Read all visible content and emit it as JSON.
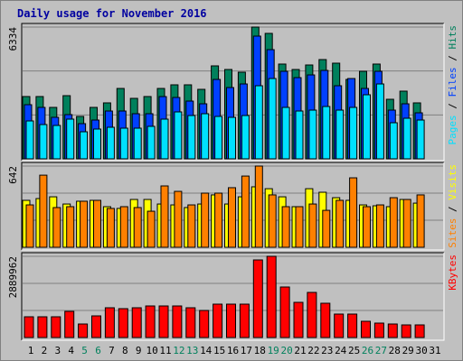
{
  "title": "Daily usage for November 2016",
  "separator": "/",
  "chart_data": [
    {
      "type": "bar",
      "ylim": [
        0,
        6334
      ],
      "yticks": [
        6334
      ],
      "series": [
        {
          "name": "Hits",
          "color": "#00805c",
          "values": [
            2995,
            2995,
            2473,
            3037,
            2039,
            2473,
            2690,
            3384,
            2907,
            2995,
            3384,
            3558,
            3558,
            3341,
            4469,
            4295,
            4165,
            6334,
            6031,
            4556,
            4295,
            4512,
            4772,
            4599,
            3818,
            4208,
            4556,
            2863,
            3254,
            2690,
            null
          ]
        },
        {
          "name": "Files",
          "color": "#0040ff",
          "values": [
            2603,
            2473,
            1996,
            2126,
            1692,
            1865,
            2299,
            2299,
            2169,
            2169,
            2993,
            2950,
            2776,
            2646,
            3817,
            3427,
            3600,
            5900,
            5249,
            4208,
            3904,
            4034,
            4251,
            3514,
            3861,
            3384,
            4208,
            2342,
            2646,
            2212,
            null
          ]
        },
        {
          "name": "Pages",
          "color": "#00e0ff",
          "values": [
            1822,
            1648,
            1605,
            1909,
            1301,
            1432,
            1518,
            1475,
            1475,
            1562,
            1909,
            2256,
            2082,
            2169,
            2039,
            1995,
            2082,
            3514,
            3861,
            2473,
            2299,
            2342,
            2516,
            2342,
            2473,
            3080,
            3600,
            1735,
            1952,
            1865,
            null
          ]
        }
      ]
    },
    {
      "type": "bar",
      "ylim": [
        0,
        642
      ],
      "yticks": [
        642
      ],
      "series": [
        {
          "name": "Visits",
          "color": "#ffff00",
          "values": [
            371,
            385,
            399,
            342,
            364,
            371,
            321,
            307,
            378,
            378,
            342,
            335,
            314,
            342,
            414,
            342,
            399,
            478,
            463,
            399,
            321,
            463,
            435,
            392,
            371,
            335,
            328,
            321,
            378,
            349,
            null
          ]
        },
        {
          "name": "Sites",
          "color": "#ff8000",
          "values": [
            335,
            570,
            314,
            321,
            364,
            371,
            307,
            321,
            314,
            285,
            485,
            442,
            335,
            428,
            428,
            471,
            563,
            642,
            414,
            321,
            321,
            342,
            292,
            371,
            549,
            321,
            335,
            392,
            378,
            414,
            null
          ]
        }
      ]
    },
    {
      "type": "bar",
      "ylim": [
        0,
        2889962
      ],
      "yticks": [
        2889962
      ],
      "categories": [
        "1",
        "2",
        "3",
        "4",
        "5",
        "6",
        "7",
        "8",
        "9",
        "10",
        "11",
        "12",
        "13",
        "14",
        "15",
        "16",
        "17",
        "18",
        "19",
        "20",
        "21",
        "22",
        "23",
        "24",
        "25",
        "26",
        "27",
        "28",
        "29",
        "30",
        "31"
      ],
      "category_colors": [
        "#000000",
        "#000000",
        "#000000",
        "#000000",
        "#00805c",
        "#00805c",
        "#000000",
        "#000000",
        "#000000",
        "#000000",
        "#000000",
        "#00805c",
        "#00805c",
        "#000000",
        "#000000",
        "#000000",
        "#000000",
        "#000000",
        "#00805c",
        "#00805c",
        "#000000",
        "#000000",
        "#000000",
        "#000000",
        "#000000",
        "#00805c",
        "#00805c",
        "#000000",
        "#000000",
        "#000000",
        "#000000"
      ],
      "series": [
        {
          "name": "KBytes",
          "color": "#ff0000",
          "values": [
            738553,
            738553,
            738553,
            931219,
            481665,
            770664,
            1059663,
            1027552,
            1059663,
            1123885,
            1123885,
            1123885,
            1059663,
            963330,
            1188107,
            1188107,
            1188107,
            2761546,
            2889962,
            1798216,
            1252329,
            1605550,
            1220218,
            834886,
            834886,
            577998,
            513776,
            481665,
            449554,
            449554,
            null
          ]
        }
      ]
    }
  ]
}
